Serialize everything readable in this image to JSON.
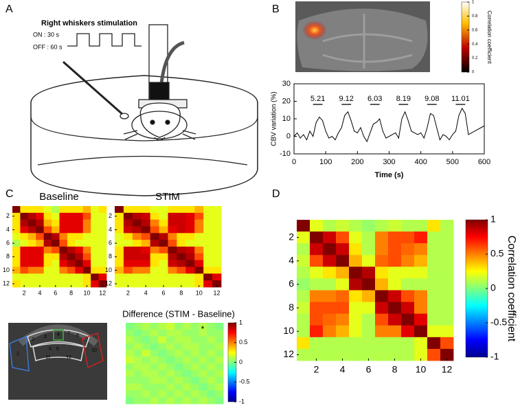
{
  "panel_labels": [
    "A",
    "B",
    "C",
    "D"
  ],
  "panel_a": {
    "title": "Right whiskers stimulation",
    "on": "ON : 30 s",
    "off": "OFF : 60 s"
  },
  "region_labels": [
    "1",
    "2",
    "3",
    "4",
    "5",
    "6",
    "7",
    "8",
    "9",
    "10",
    "11",
    "12"
  ],
  "chart_data": [
    {
      "type": "heatmap",
      "title": "Baseline",
      "clim": [
        -1,
        1
      ],
      "xticks": [
        2,
        4,
        6,
        8,
        10,
        12
      ],
      "yticks": [
        2,
        4,
        6,
        8,
        10,
        12
      ],
      "matrix": [
        [
          1,
          0.3,
          0.3,
          0.3,
          0.2,
          0.1,
          0.3,
          0.3,
          0.3,
          0.4,
          0.2,
          0.3
        ],
        [
          0.3,
          1,
          0.9,
          0.8,
          0.3,
          0.2,
          0.8,
          0.8,
          0.8,
          0.6,
          0.2,
          0.2
        ],
        [
          0.3,
          0.9,
          1,
          0.9,
          0.4,
          0.3,
          0.8,
          0.8,
          0.8,
          0.5,
          0.2,
          0.2
        ],
        [
          0.3,
          0.8,
          0.9,
          1,
          0.6,
          0.4,
          0.8,
          0.8,
          0.8,
          0.5,
          0.2,
          0.2
        ],
        [
          0.2,
          0.3,
          0.4,
          0.6,
          1,
          0.9,
          0.5,
          0.3,
          0.3,
          0.2,
          0.2,
          0.2
        ],
        [
          0.1,
          0.2,
          0.3,
          0.4,
          0.9,
          1,
          0.6,
          0.3,
          0.2,
          0.2,
          0.2,
          0.2
        ],
        [
          0.3,
          0.8,
          0.8,
          0.8,
          0.5,
          0.6,
          1,
          0.9,
          0.8,
          0.5,
          0.2,
          0.2
        ],
        [
          0.3,
          0.8,
          0.8,
          0.8,
          0.3,
          0.3,
          0.9,
          1,
          0.9,
          0.6,
          0.2,
          0.2
        ],
        [
          0.3,
          0.8,
          0.8,
          0.8,
          0.3,
          0.2,
          0.8,
          0.9,
          1,
          0.8,
          0.2,
          0.2
        ],
        [
          0.4,
          0.6,
          0.5,
          0.5,
          0.2,
          0.2,
          0.5,
          0.6,
          0.8,
          1,
          0.3,
          0.3
        ],
        [
          0.2,
          0.2,
          0.2,
          0.2,
          0.2,
          0.2,
          0.2,
          0.2,
          0.2,
          0.3,
          1,
          0.8
        ],
        [
          0.3,
          0.2,
          0.2,
          0.2,
          0.2,
          0.2,
          0.2,
          0.2,
          0.2,
          0.3,
          0.8,
          1
        ]
      ]
    },
    {
      "type": "heatmap",
      "title": "STIM",
      "clim": [
        -1,
        1
      ],
      "xticks": [
        2,
        4,
        6,
        8,
        10,
        12
      ],
      "yticks": [
        2,
        4,
        6,
        8,
        10,
        12
      ],
      "matrix": [
        [
          1,
          0.3,
          0.3,
          0.3,
          0.2,
          0.2,
          0.3,
          0.3,
          0.3,
          0.4,
          0.2,
          0.2
        ],
        [
          0.3,
          1,
          0.9,
          0.85,
          0.3,
          0.2,
          0.85,
          0.85,
          0.8,
          0.6,
          0.2,
          0.2
        ],
        [
          0.3,
          0.9,
          1,
          0.9,
          0.5,
          0.3,
          0.85,
          0.85,
          0.8,
          0.5,
          0.2,
          0.2
        ],
        [
          0.3,
          0.85,
          0.9,
          1,
          0.6,
          0.4,
          0.8,
          0.85,
          0.8,
          0.5,
          0.2,
          0.2
        ],
        [
          0.2,
          0.3,
          0.5,
          0.6,
          1,
          0.9,
          0.5,
          0.3,
          0.3,
          0.2,
          0.2,
          0.2
        ],
        [
          0.2,
          0.2,
          0.3,
          0.4,
          0.9,
          1,
          0.6,
          0.3,
          0.2,
          0.2,
          0.2,
          0.2
        ],
        [
          0.3,
          0.85,
          0.85,
          0.8,
          0.5,
          0.6,
          1,
          0.9,
          0.85,
          0.5,
          0.2,
          0.2
        ],
        [
          0.3,
          0.85,
          0.85,
          0.85,
          0.3,
          0.3,
          0.9,
          1,
          0.9,
          0.6,
          0.2,
          0.2
        ],
        [
          0.3,
          0.8,
          0.8,
          0.8,
          0.3,
          0.2,
          0.85,
          0.9,
          1,
          0.8,
          0.2,
          0.2
        ],
        [
          0.4,
          0.6,
          0.5,
          0.5,
          0.2,
          0.2,
          0.5,
          0.6,
          0.8,
          1,
          0.3,
          0.3
        ],
        [
          0.2,
          0.2,
          0.2,
          0.2,
          0.2,
          0.2,
          0.2,
          0.2,
          0.2,
          0.3,
          1,
          0.8
        ],
        [
          0.2,
          0.2,
          0.2,
          0.2,
          0.2,
          0.2,
          0.2,
          0.2,
          0.2,
          0.3,
          0.8,
          1
        ]
      ]
    },
    {
      "type": "heatmap",
      "title": "Difference (STIM - Baseline)",
      "clim": [
        -1,
        1
      ],
      "colorbar_ticks": [
        1,
        0.5,
        0,
        -0.5,
        -1
      ],
      "marker": "*",
      "matrix": [
        [
          0,
          0.05,
          0.1,
          0.05,
          0.1,
          0.15,
          0.05,
          0.1,
          0.05,
          0.1,
          0.05,
          0
        ],
        [
          0.05,
          0,
          0.05,
          0.1,
          0.05,
          0.1,
          0.1,
          0.05,
          0.05,
          0.1,
          0.05,
          0.05
        ],
        [
          0.1,
          0.05,
          0,
          0.05,
          0.15,
          0.05,
          0.1,
          0.1,
          0.05,
          0.05,
          0.1,
          0.05
        ],
        [
          0.05,
          0.1,
          0.05,
          0,
          0.05,
          0.1,
          0.05,
          0.1,
          0.1,
          0.05,
          0.05,
          0.1
        ],
        [
          0.1,
          0.05,
          0.15,
          0.05,
          0,
          0.05,
          0.1,
          0.05,
          0.1,
          0.05,
          0.1,
          0.05
        ],
        [
          0.15,
          0.1,
          0.05,
          0.1,
          0.05,
          0,
          0.05,
          0.1,
          0.05,
          0.1,
          0.05,
          0.1
        ],
        [
          0.05,
          0.1,
          0.1,
          0.05,
          0.1,
          0.05,
          0,
          0.05,
          0.1,
          0.05,
          0.1,
          0.05
        ],
        [
          0.1,
          0.05,
          0.1,
          0.1,
          0.05,
          0.1,
          0.05,
          0,
          0.05,
          0.1,
          0.05,
          0.1
        ],
        [
          0.05,
          0.05,
          0.05,
          0.1,
          0.1,
          0.05,
          0.1,
          0.05,
          0,
          0.05,
          0.1,
          0.05
        ],
        [
          0.1,
          0.1,
          0.05,
          0.05,
          0.05,
          0.1,
          0.05,
          0.1,
          0.05,
          0,
          0.05,
          0.1
        ],
        [
          0.05,
          0.05,
          0.1,
          0.05,
          0.1,
          0.05,
          0.1,
          0.05,
          0.1,
          0.05,
          0,
          0.05
        ],
        [
          0,
          0.05,
          0.05,
          0.1,
          0.05,
          0.1,
          0.05,
          0.1,
          0.05,
          0.1,
          0.05,
          0
        ]
      ]
    },
    {
      "type": "heatmap",
      "clim": [
        -1,
        1
      ],
      "xticks": [
        2,
        4,
        6,
        8,
        10,
        12
      ],
      "yticks": [
        2,
        4,
        6,
        8,
        10,
        12
      ],
      "colorbar_ticks": [
        1,
        0.5,
        0,
        -0.5,
        -1
      ],
      "colorbar_label": "Correlation coefficient",
      "matrix": [
        [
          1,
          0.2,
          0.1,
          0.15,
          0.1,
          0.05,
          0.1,
          0.15,
          0.1,
          0.1,
          0.3,
          0.1
        ],
        [
          0.2,
          1,
          0.85,
          0.6,
          0.2,
          0.1,
          0.5,
          0.6,
          0.6,
          0.7,
          0.1,
          0.1
        ],
        [
          0.1,
          0.85,
          1,
          0.85,
          0.3,
          0.1,
          0.5,
          0.6,
          0.55,
          0.5,
          0.1,
          0.1
        ],
        [
          0.15,
          0.6,
          0.85,
          1,
          0.4,
          0.2,
          0.55,
          0.6,
          0.5,
          0.4,
          0.1,
          0.1
        ],
        [
          0.1,
          0.2,
          0.3,
          0.4,
          1,
          0.9,
          0.3,
          0.2,
          0.2,
          0.2,
          0.1,
          0.1
        ],
        [
          0.05,
          0.1,
          0.1,
          0.2,
          0.9,
          1,
          0.4,
          0.2,
          0.1,
          0.1,
          0.1,
          0.1
        ],
        [
          0.1,
          0.5,
          0.5,
          0.55,
          0.3,
          0.4,
          1,
          0.85,
          0.6,
          0.5,
          0.1,
          0.1
        ],
        [
          0.15,
          0.6,
          0.6,
          0.6,
          0.2,
          0.2,
          0.85,
          1,
          0.85,
          0.5,
          0.1,
          0.1
        ],
        [
          0.1,
          0.6,
          0.55,
          0.5,
          0.2,
          0.1,
          0.6,
          0.85,
          1,
          0.8,
          0.1,
          0.1
        ],
        [
          0.1,
          0.7,
          0.5,
          0.4,
          0.2,
          0.1,
          0.5,
          0.5,
          0.8,
          1,
          0.2,
          0.2
        ],
        [
          0.3,
          0.1,
          0.1,
          0.1,
          0.1,
          0.1,
          0.1,
          0.1,
          0.1,
          0.2,
          1,
          0.6
        ],
        [
          0.1,
          0.1,
          0.1,
          0.1,
          0.1,
          0.1,
          0.1,
          0.1,
          0.1,
          0.2,
          0.6,
          1
        ]
      ]
    },
    {
      "type": "line",
      "xlabel": "Time (s)",
      "ylabel": "CBV variation (%)",
      "color": "#000000",
      "xlim": [
        0,
        600
      ],
      "ylim": [
        -10,
        30
      ],
      "xticks": [
        0,
        100,
        200,
        300,
        400,
        500,
        600
      ],
      "yticks": [
        -10,
        0,
        10,
        20,
        30
      ],
      "x": [
        0,
        10,
        20,
        30,
        40,
        50,
        60,
        70,
        80,
        90,
        100,
        110,
        120,
        130,
        140,
        150,
        160,
        170,
        180,
        190,
        200,
        210,
        220,
        230,
        240,
        250,
        260,
        270,
        280,
        290,
        300,
        310,
        320,
        330,
        340,
        350,
        360,
        370,
        380,
        390,
        400,
        410,
        420,
        430,
        440,
        450,
        460,
        470,
        480,
        490,
        500,
        510,
        520,
        530,
        540,
        550,
        560,
        570,
        580,
        590,
        600
      ],
      "values": [
        0,
        2,
        -1,
        1,
        -2,
        3,
        0,
        8,
        11,
        9,
        3,
        -1,
        0,
        -2,
        2,
        5,
        12,
        14,
        9,
        3,
        2,
        5,
        0,
        -3,
        2,
        7,
        8,
        10,
        3,
        -1,
        0,
        1,
        2,
        -1,
        10,
        14,
        9,
        3,
        2,
        1,
        2,
        -1,
        5,
        13,
        12,
        5,
        -2,
        1,
        0,
        -2,
        1,
        3,
        12,
        16,
        13,
        1,
        2,
        3,
        4,
        5,
        6
      ],
      "stim_periods": [
        [
          60,
          90
        ],
        [
          150,
          180
        ],
        [
          240,
          270
        ],
        [
          330,
          360
        ],
        [
          420,
          450
        ],
        [
          510,
          540
        ]
      ],
      "annotations": [
        "5.21",
        "9.12",
        "6.03",
        "8.19",
        "9.08",
        "11.01"
      ]
    },
    {
      "type": "image",
      "clim": [
        0,
        1
      ],
      "colorbar_ticks": [
        1,
        0.8,
        0.6,
        0.4,
        0.2,
        0
      ],
      "colorbar_label": "Correlation coefficient"
    }
  ]
}
